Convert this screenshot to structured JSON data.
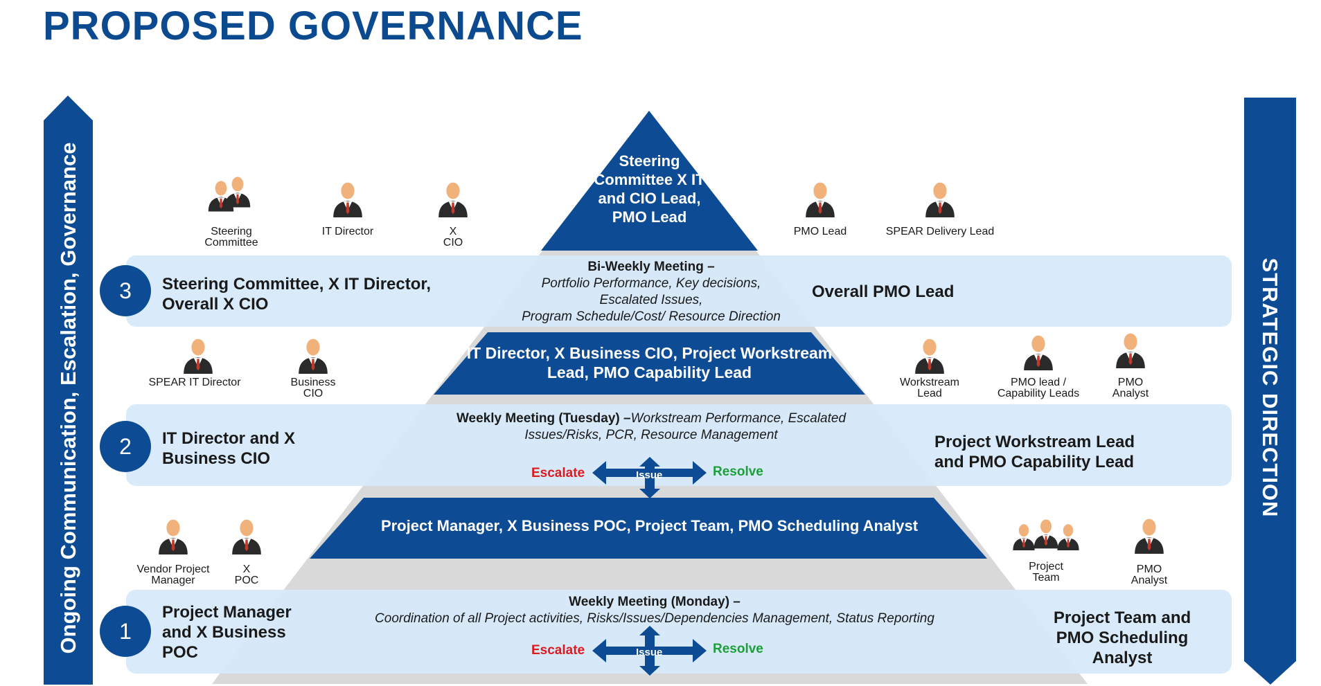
{
  "title": "PROPOSED GOVERNANCE",
  "left_banner": "Ongoing Communication, Escalation, Governance",
  "right_banner": "STRATEGIC DIRECTION",
  "colors": {
    "navy": "#0d4c94",
    "band": "#d6e9fa",
    "grey": "#d9d9d9",
    "escalate": "#e0191f",
    "resolve": "#1c9e3a"
  },
  "tiers": [
    {
      "label": "Steering Committee X IT and CIO Lead, PMO Lead"
    },
    {
      "label": "IT Director, X Business CIO, Project Workstream Lead, PMO Capability Lead"
    },
    {
      "label": "Project Manager, X Business POC, Project Team, PMO Scheduling Analyst"
    }
  ],
  "bands": [
    {
      "number": "3",
      "left": "Steering Committee, X IT Director, Overall X CIO",
      "right": "Overall PMO Lead",
      "meeting_title": "Bi-Weekly Meeting –",
      "meeting_lines": [
        "Portfolio Performance, Key decisions,",
        "Escalated Issues,",
        "Program Schedule/Cost/ Resource Direction"
      ]
    },
    {
      "number": "2",
      "left": "IT Director and X Business CIO",
      "right": "Project Workstream Lead and PMO Capability Lead",
      "meeting_title": "Weekly Meeting (Tuesday) –",
      "meeting_rest": "Workstream Performance, Escalated",
      "meeting_line2": "Issues/Risks, PCR, Resource Management",
      "escalate": "Escalate",
      "issue": "Issue",
      "resolve": "Resolve"
    },
    {
      "number": "1",
      "left": "Project Manager and X Business POC",
      "right": "Project Team and PMO Scheduling Analyst",
      "meeting_title": "Weekly Meeting (Monday) –",
      "meeting_line2": "Coordination of all Project activities, Risks/Issues/Dependencies Management, Status Reporting",
      "escalate": "Escalate",
      "issue": "Issue",
      "resolve": "Resolve"
    }
  ],
  "roles": {
    "top_left": [
      {
        "icon": "business-group-icon",
        "line1": "Steering",
        "line2": "Committee"
      },
      {
        "icon": "businessman-gray-icon",
        "line1": "IT Director",
        "line2": ""
      },
      {
        "icon": "businessman-blue-icon",
        "line1": "X",
        "line2": "CIO"
      }
    ],
    "top_right": [
      {
        "icon": "businessman-dark-icon",
        "line1": "PMO Lead",
        "line2": ""
      },
      {
        "icon": "businessman-dark-icon",
        "line1": "SPEAR Delivery Lead",
        "line2": ""
      }
    ],
    "mid_left": [
      {
        "icon": "businessman-gray-icon",
        "line1": "SPEAR IT Director",
        "line2": ""
      },
      {
        "icon": "businessman-blue-icon",
        "line1": "Business",
        "line2": "CIO"
      }
    ],
    "mid_right": [
      {
        "icon": "businessman-dark-icon",
        "line1": "Workstream",
        "line2": "Lead"
      },
      {
        "icon": "businessman-blue-icon",
        "line1": "PMO lead /",
        "line2": "Capability Leads"
      },
      {
        "icon": "businesswoman-icon",
        "line1": "PMO",
        "line2": "Analyst"
      }
    ],
    "low_left": [
      {
        "icon": "businessman-red-tie-icon",
        "line1": "Vendor Project",
        "line2": "Manager"
      },
      {
        "icon": "businessman-dark-icon",
        "line1": "X",
        "line2": "POC"
      }
    ],
    "low_right": [
      {
        "icon": "team-icon",
        "line1": "Project",
        "line2": "Team"
      },
      {
        "icon": "businesswoman-icon",
        "line1": "PMO",
        "line2": "Analyst"
      }
    ]
  }
}
